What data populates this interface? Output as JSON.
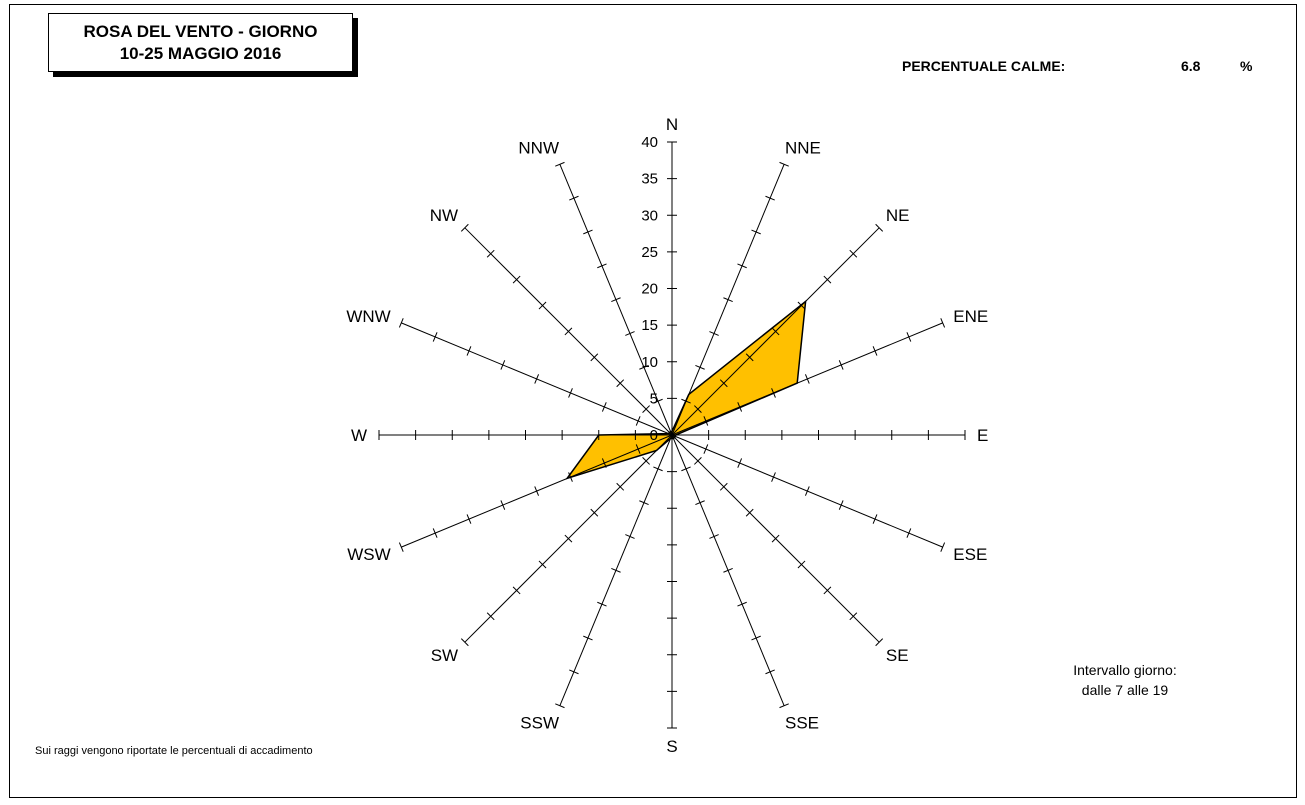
{
  "title": {
    "line1": "ROSA DEL VENTO - GIORNO",
    "line2": "10-25 MAGGIO 2016"
  },
  "calme": {
    "label": "PERCENTUALE CALME:",
    "value": "6.8",
    "unit": "%"
  },
  "interval": {
    "line1": "Intervallo giorno:",
    "line2": "dalle 7 alle 19"
  },
  "footnote": "Sui raggi vengono riportate le percentuali di accadimento",
  "colors": {
    "fill": "#ffc000",
    "stroke": "#000000"
  },
  "chart_data": {
    "type": "radar",
    "directions": [
      "N",
      "NNE",
      "NE",
      "ENE",
      "E",
      "ESE",
      "SE",
      "SSE",
      "S",
      "SSW",
      "SW",
      "WSW",
      "W",
      "WNW",
      "NW",
      "NNW"
    ],
    "values": [
      0.5,
      6.0,
      25.8,
      18.5,
      0.5,
      0.5,
      0.5,
      0.5,
      0.5,
      0.5,
      3.0,
      15.5,
      10.0,
      0.5,
      0.5,
      0.5
    ],
    "rlim": [
      0,
      40
    ],
    "ticks": [
      0,
      5,
      10,
      15,
      20,
      25,
      30,
      35,
      40
    ],
    "tick_labels": [
      "0",
      "5",
      "10",
      "15",
      "20",
      "25",
      "30",
      "35",
      "40"
    ]
  }
}
